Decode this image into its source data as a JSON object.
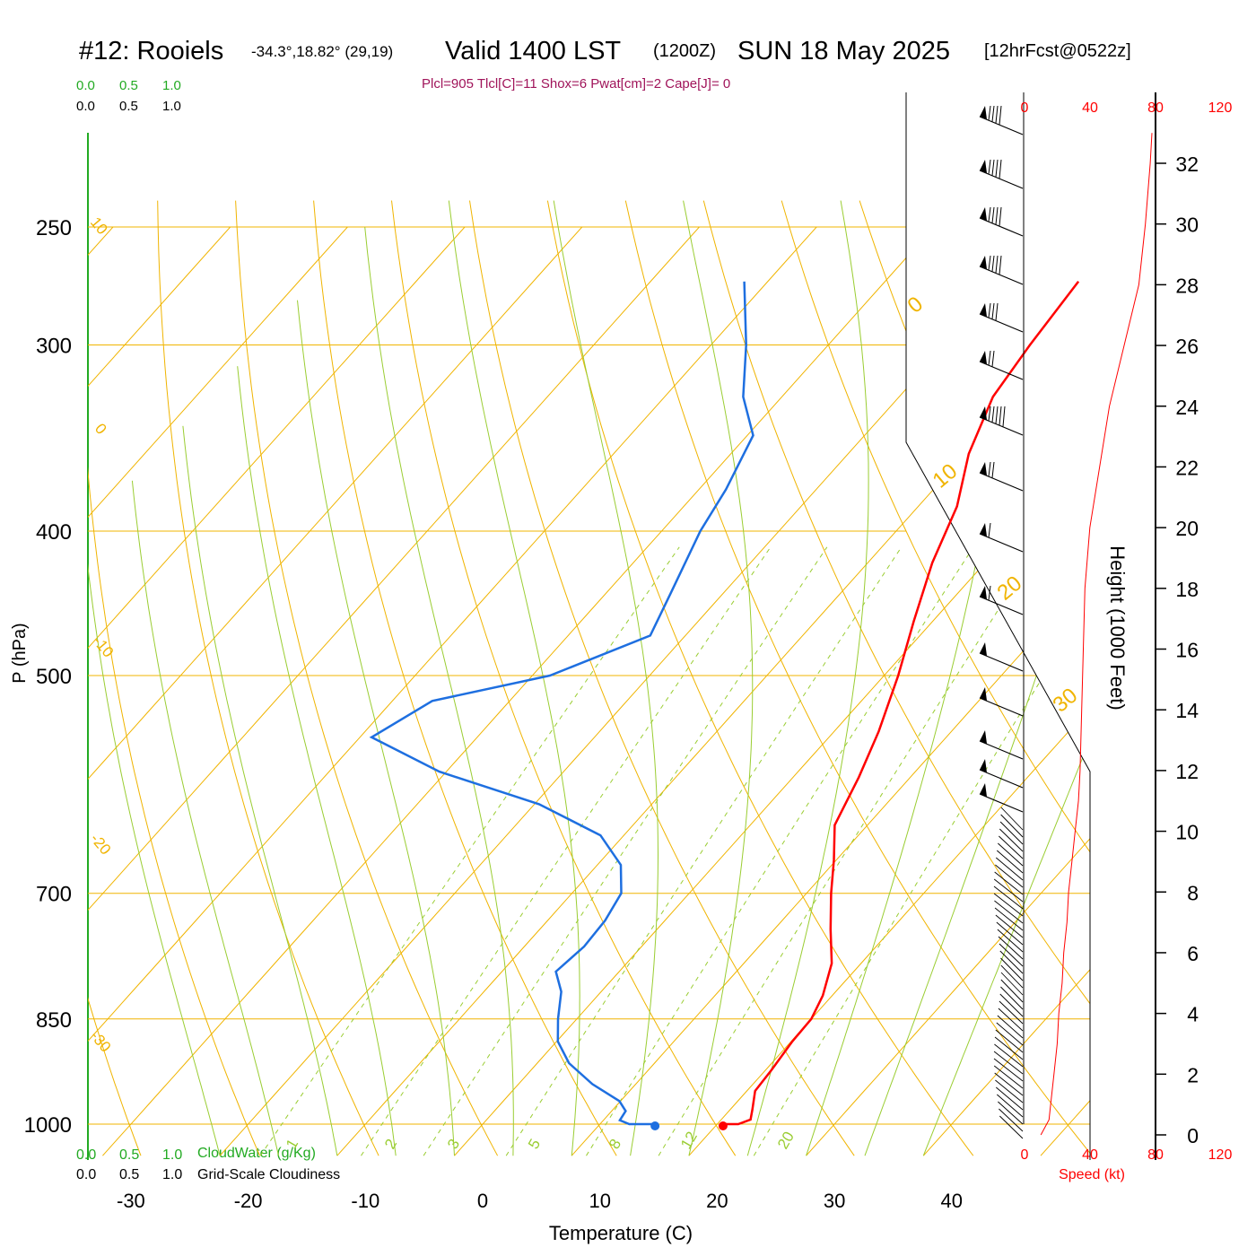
{
  "title": {
    "station": "#12: Rooiels",
    "coords": "-34.3°,18.82° (29,19)",
    "valid_pre": "Valid 1400 LST",
    "valid_utc": "(1200Z)",
    "valid_date": "SUN 18 May 2025",
    "forecast": "[12hrFcst@0522z]"
  },
  "indices": "Plcl=905 Tlcl[C]=11 Shox=6 Pwat[cm]=2 Cape[J]= 0",
  "scales": {
    "cloudwater_ticks": [
      "0.0",
      "0.5",
      "1.0"
    ],
    "cloudiness_ticks": [
      "0.0",
      "0.5",
      "1.0"
    ],
    "cloudwater_label": "CloudWater (g/Kg)",
    "cloudiness_label": "Grid-Scale Cloudiness",
    "speed_ticks": [
      "0",
      "40",
      "80",
      "120"
    ],
    "speed_label": "Speed (kt)"
  },
  "colors": {
    "temperature": "#ff0000",
    "dewpoint": "#1e6fe0",
    "isotherm": "#f0b400",
    "dry_adiabat": "#f0b400",
    "moist_adiabat": "#9acd32",
    "mixing_ratio": "#9acd32",
    "cloud_scale": "#22aa22",
    "indices": "#a0145a",
    "speed": "#ff0000"
  },
  "chart_data": {
    "type": "line",
    "xlabel": "Temperature (C)",
    "ylabel": "P (hPa)",
    "y2label": "Height (1000 Feet)",
    "x_ticks": [
      -30,
      -20,
      -10,
      0,
      10,
      20,
      30,
      40
    ],
    "pressure_ticks": [
      250,
      300,
      400,
      500,
      700,
      850,
      1000
    ],
    "height_ticks": [
      0,
      2,
      4,
      6,
      8,
      10,
      12,
      14,
      16,
      18,
      20,
      22,
      24,
      26,
      28,
      30,
      32
    ],
    "isotherm_labels": [
      "10",
      "0",
      "-10",
      "-20",
      "-30"
    ],
    "isotherm_labels_right": [
      "0",
      "10",
      "20",
      "30"
    ],
    "mixing_ratio_labels": [
      "1",
      "2",
      "3",
      "5",
      "8",
      "12",
      "20"
    ],
    "log_pressure": true,
    "series": [
      {
        "name": "Temperature",
        "points": [
          [
            20.5,
            1000
          ],
          [
            21.8,
            1000
          ],
          [
            22.5,
            993
          ],
          [
            21.9,
            978
          ],
          [
            20.7,
            950
          ],
          [
            20.5,
            920
          ],
          [
            20.1,
            880
          ],
          [
            20.0,
            850
          ],
          [
            19.2,
            820
          ],
          [
            17.5,
            780
          ],
          [
            14.8,
            740
          ],
          [
            12.1,
            700
          ],
          [
            9.8,
            665
          ],
          [
            7.2,
            630
          ],
          [
            5.6,
            585
          ],
          [
            3.8,
            545
          ],
          [
            1.2,
            500
          ],
          [
            -1.6,
            460
          ],
          [
            -4.5,
            420
          ],
          [
            -6.7,
            385
          ],
          [
            -9.7,
            355
          ],
          [
            -12.0,
            325
          ],
          [
            -12.8,
            300
          ],
          [
            -13.5,
            272
          ]
        ]
      },
      {
        "name": "Dewpoint",
        "points": [
          [
            14.7,
            1000
          ],
          [
            12.5,
            1000
          ],
          [
            11.4,
            994
          ],
          [
            11.2,
            980
          ],
          [
            9.9,
            965
          ],
          [
            6.3,
            940
          ],
          [
            2.7,
            910
          ],
          [
            0.1,
            880
          ],
          [
            -1.6,
            850
          ],
          [
            -3.4,
            815
          ],
          [
            -5.4,
            790
          ],
          [
            -4.9,
            760
          ],
          [
            -5.1,
            730
          ],
          [
            -5.8,
            700
          ],
          [
            -8.0,
            670
          ],
          [
            -12.0,
            640
          ],
          [
            -19.6,
            610
          ],
          [
            -30.6,
            580
          ],
          [
            -39.0,
            550
          ],
          [
            -36.6,
            520
          ],
          [
            -28.5,
            500
          ],
          [
            -23.0,
            470
          ],
          [
            -24.5,
            440
          ],
          [
            -26.7,
            400
          ],
          [
            -27.7,
            375
          ],
          [
            -29.5,
            345
          ],
          [
            -33.3,
            325
          ],
          [
            -37.0,
            300
          ],
          [
            -42.0,
            272
          ]
        ]
      }
    ],
    "surface_points": {
      "temperature": 20.5,
      "dewpoint": 14.7
    },
    "wind_speed_profile_kt": [
      [
        0,
        10
      ],
      [
        0.5,
        15
      ],
      [
        1,
        16
      ],
      [
        2,
        18
      ],
      [
        3,
        20
      ],
      [
        4,
        21
      ],
      [
        5,
        23
      ],
      [
        6,
        24
      ],
      [
        7,
        26
      ],
      [
        8,
        27
      ],
      [
        9,
        29
      ],
      [
        10,
        31
      ],
      [
        11,
        33
      ],
      [
        12,
        34
      ],
      [
        14,
        35
      ],
      [
        16,
        36
      ],
      [
        18,
        37
      ],
      [
        20,
        40
      ],
      [
        22,
        46
      ],
      [
        24,
        52
      ],
      [
        26,
        61
      ],
      [
        28,
        70
      ],
      [
        30,
        74
      ],
      [
        32,
        77
      ],
      [
        33,
        78
      ]
    ]
  }
}
